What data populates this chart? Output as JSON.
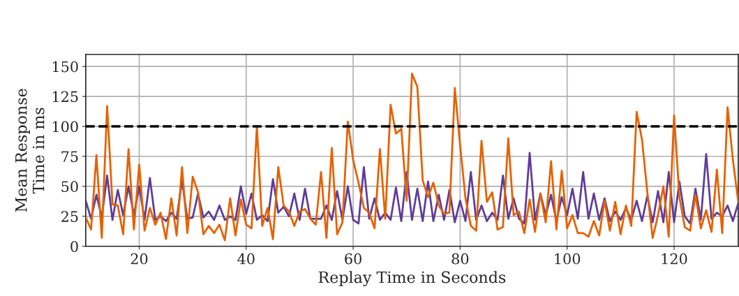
{
  "chart_data": {
    "type": "line",
    "xlabel": "Replay Time in Seconds",
    "ylabel": "Mean Response\nTime in ms",
    "x": [
      10,
      11,
      12,
      13,
      14,
      15,
      16,
      17,
      18,
      19,
      20,
      21,
      22,
      23,
      24,
      25,
      26,
      27,
      28,
      29,
      30,
      31,
      32,
      33,
      34,
      35,
      36,
      37,
      38,
      39,
      40,
      41,
      42,
      43,
      44,
      45,
      46,
      47,
      48,
      49,
      50,
      51,
      52,
      53,
      54,
      55,
      56,
      57,
      58,
      59,
      60,
      61,
      62,
      63,
      64,
      65,
      66,
      67,
      68,
      69,
      70,
      71,
      72,
      73,
      74,
      75,
      76,
      77,
      78,
      79,
      80,
      81,
      82,
      83,
      84,
      85,
      86,
      87,
      88,
      89,
      90,
      91,
      92,
      93,
      94,
      95,
      96,
      97,
      98,
      99,
      100,
      101,
      102,
      103,
      104,
      105,
      106,
      107,
      108,
      109,
      110,
      111,
      112,
      113,
      114,
      115,
      116,
      117,
      118,
      119,
      120,
      121,
      122,
      123,
      124,
      125,
      126,
      127,
      128,
      129,
      130,
      131,
      132
    ],
    "series": [
      {
        "color": "#5e3c99",
        "values": [
          38,
          23,
          43,
          24,
          59,
          22,
          47,
          26,
          50,
          26,
          50,
          22,
          57,
          22,
          25,
          21,
          28,
          23,
          55,
          23,
          24,
          44,
          24,
          29,
          22,
          34,
          22,
          25,
          22,
          50,
          27,
          44,
          22,
          26,
          21,
          56,
          28,
          33,
          25,
          44,
          22,
          48,
          23,
          23,
          23,
          34,
          22,
          46,
          22,
          50,
          22,
          19,
          66,
          23,
          40,
          22,
          28,
          22,
          49,
          21,
          62,
          22,
          48,
          21,
          54,
          21,
          43,
          22,
          47,
          20,
          38,
          21,
          62,
          22,
          34,
          21,
          28,
          22,
          59,
          23,
          40,
          23,
          19,
          78,
          22,
          44,
          26,
          43,
          21,
          41,
          26,
          48,
          23,
          62,
          23,
          44,
          22,
          40,
          21,
          29,
          22,
          32,
          22,
          38,
          21,
          42,
          20,
          46,
          20,
          62,
          20,
          54,
          25,
          19,
          48,
          22,
          77,
          23,
          28,
          25,
          34,
          21,
          36
        ]
      },
      {
        "color": "#e66101",
        "values": [
          24,
          14,
          76,
          7,
          117,
          35,
          34,
          10,
          81,
          14,
          68,
          13,
          32,
          18,
          28,
          6,
          40,
          9,
          66,
          11,
          58,
          45,
          10,
          17,
          11,
          18,
          5,
          40,
          9,
          39,
          18,
          15,
          100,
          17,
          32,
          6,
          66,
          34,
          29,
          17,
          29,
          31,
          23,
          18,
          62,
          7,
          82,
          10,
          20,
          104,
          72,
          53,
          32,
          28,
          15,
          81,
          23,
          118,
          94,
          98,
          38,
          144,
          133,
          55,
          41,
          53,
          34,
          27,
          28,
          132,
          84,
          40,
          17,
          13,
          88,
          37,
          45,
          14,
          16,
          90,
          26,
          29,
          11,
          39,
          12,
          44,
          20,
          71,
          14,
          63,
          15,
          26,
          11,
          11,
          8,
          21,
          9,
          38,
          13,
          37,
          10,
          34,
          17,
          112,
          89,
          45,
          7,
          26,
          50,
          8,
          109,
          41,
          16,
          13,
          43,
          15,
          30,
          12,
          64,
          11,
          116,
          72,
          37
        ]
      }
    ],
    "xlim": [
      10,
      132
    ],
    "xticks": [
      20,
      40,
      60,
      80,
      100,
      120
    ],
    "ylim": [
      0,
      160
    ],
    "yticks": [
      0,
      25,
      50,
      75,
      100,
      125,
      150
    ],
    "ref_lines": [
      {
        "axis": "y",
        "value": 100,
        "color": "#000000",
        "line_style": "dashed"
      }
    ],
    "grid": true
  }
}
